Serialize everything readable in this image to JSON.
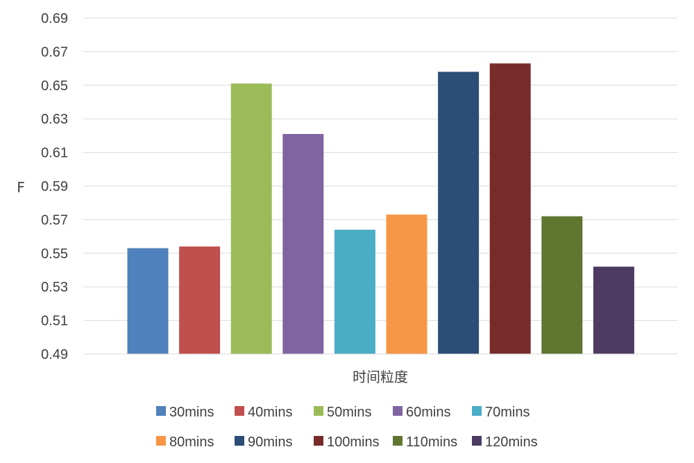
{
  "chart_data": {
    "type": "bar",
    "title": "",
    "xlabel": "时间粒度",
    "ylabel": "F",
    "ylim": [
      0.49,
      0.69
    ],
    "yticks": [
      "0.49",
      "0.51",
      "0.53",
      "0.55",
      "0.57",
      "0.59",
      "0.61",
      "0.63",
      "0.65",
      "0.67",
      "0.69"
    ],
    "grid": true,
    "legend_position": "bottom",
    "series": [
      {
        "name": "30mins",
        "value": 0.553,
        "color": "#4F81BD"
      },
      {
        "name": "40mins",
        "value": 0.554,
        "color": "#C0504D"
      },
      {
        "name": "50mins",
        "value": 0.651,
        "color": "#9BBB59"
      },
      {
        "name": "60mins",
        "value": 0.621,
        "color": "#8064A2"
      },
      {
        "name": "70mins",
        "value": 0.564,
        "color": "#4BACC6"
      },
      {
        "name": "80mins",
        "value": 0.573,
        "color": "#F79646"
      },
      {
        "name": "90mins",
        "value": 0.658,
        "color": "#2C4D75"
      },
      {
        "name": "100mins",
        "value": 0.663,
        "color": "#772C2A"
      },
      {
        "name": "110mins",
        "value": 0.572,
        "color": "#5F7530"
      },
      {
        "name": "120mins",
        "value": 0.542,
        "color": "#4D3B62"
      }
    ]
  }
}
